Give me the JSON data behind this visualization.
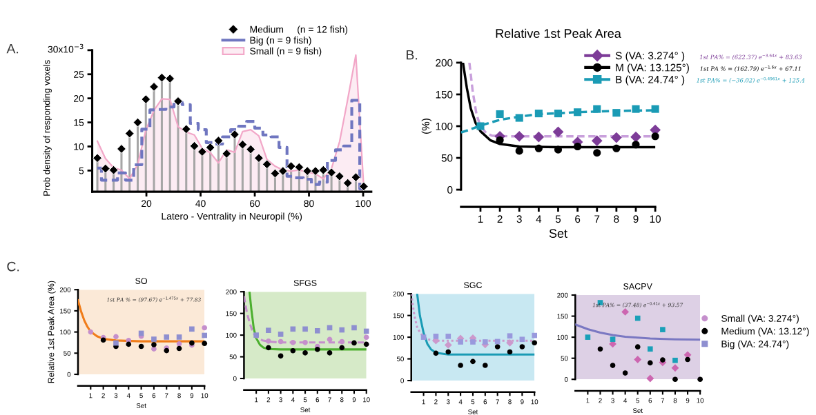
{
  "chart_data": [
    {
      "type": "lollipop",
      "xlabel": "Latero - Ventrality in Neuropil (%)",
      "ylabel": "Prob density of responding voxels",
      "annotations": [
        "A.",
        "30x10$^{−3}$"
      ],
      "xlim": [
        0,
        103
      ],
      "ylim": [
        0.6,
        30
      ],
      "xticks": [
        20,
        40,
        60,
        80,
        100
      ],
      "yticks": [
        5,
        10,
        15,
        20,
        25,
        {
          "value": 30,
          "label": null
        }
      ],
      "legend": "top right",
      "x": [
        1.9,
        4.9,
        7.9,
        10.8,
        13.8,
        16.8,
        19.8,
        22.8,
        25.7,
        28.7,
        31.7,
        34.7,
        37.7,
        40.6,
        43.6,
        46.6,
        49.6,
        52.6,
        55.5,
        58.5,
        61.5,
        64.5,
        67.5,
        70.4,
        73.4,
        76.4,
        79.4,
        82.4,
        85.3,
        88.3,
        91.3,
        94.3,
        97.3,
        100.2
      ],
      "series": [
        {
          "name": "Medium     (n = 12 fish)",
          "type": "lollipop",
          "marker": "diamond",
          "color": "#000000",
          "values": [
            7.6,
            5.4,
            5.1,
            9.5,
            12.7,
            15.0,
            19.8,
            22.4,
            24.3,
            24.1,
            19.4,
            13.6,
            10.1,
            8.9,
            9.8,
            11.2,
            8.5,
            12.5,
            10.4,
            9.4,
            7.6,
            6.3,
            4.4,
            4.9,
            5.9,
            5.7,
            4.9,
            4.9,
            5.1,
            4.6,
            3.8,
            2.4,
            3.6,
            1.7
          ]
        },
        {
          "name": "Big (n = 9 fish)",
          "type": "step",
          "line_style": "dashed",
          "color": "#6f76c0",
          "values": [
            5.5,
            3.0,
            3.0,
            4.5,
            3.0,
            6.2,
            13.6,
            17.6,
            17.7,
            18.2,
            19.2,
            18.7,
            14.8,
            13.5,
            10.8,
            10.5,
            12.0,
            13.5,
            14.2,
            15.2,
            13.8,
            12.4,
            12.0,
            9.8,
            3.8,
            3.5,
            3.2,
            2.1,
            2.6,
            7.1,
            9.3,
            10.1,
            19.6,
            1.2
          ]
        },
        {
          "name": "Small (n = 9 fish)",
          "type": "area",
          "color": "#f2a7c8",
          "values": [
            11.1,
            7.5,
            5.6,
            5.1,
            3.3,
            6.3,
            13.4,
            17.5,
            19.9,
            19.8,
            14.1,
            13.0,
            12.4,
            9.6,
            8.7,
            6.6,
            9.3,
            8.8,
            13.1,
            13.5,
            12.2,
            7.3,
            5.9,
            5.1,
            4.9,
            5.1,
            4.7,
            4.3,
            3.3,
            5.4,
            11.0,
            19.8,
            29.0,
            1.7
          ]
        }
      ]
    },
    {
      "type": "scatter",
      "title": "Relative 1st Peak Area",
      "xlabel": "Set",
      "ylabel": "(%)",
      "xlim": [
        0,
        10
      ],
      "ylim": [
        0,
        200
      ],
      "xticks": [
        1,
        2,
        3,
        4,
        5,
        6,
        7,
        8,
        9,
        10
      ],
      "yticks": [
        0,
        50,
        100,
        150,
        200
      ],
      "legend": "top right",
      "annotations": [
        "B.",
        "1st PA% = (622.37) e$^{−3.64x}$ + 83.63",
        "1st PA % = (162.79) e$^{−1.6x}$ + 67.11",
        "1st PA% = (−36.02) e$^{−0.4961x}$ + 125.4"
      ],
      "x": [
        1,
        2,
        3,
        4,
        5,
        6,
        7,
        8,
        9,
        10
      ],
      "series": [
        {
          "name": "S (VA: 3.274° )",
          "type": "scatter",
          "marker": "diamond",
          "color": "#7d3c98",
          "values": [
            null,
            84,
            84,
            83,
            91,
            75,
            77,
            82,
            83,
            94
          ]
        },
        {
          "name": "M (VA: 13.125°)",
          "type": "scatter",
          "marker": "circle",
          "color": "#000000",
          "values": [
            null,
            78,
            61,
            65,
            63,
            68,
            58,
            65,
            71,
            84
          ]
        },
        {
          "name": "B (VA: 24.74° )",
          "type": "scatter",
          "marker": "square",
          "color": "#1a9bb5",
          "values": [
            100,
            119,
            113,
            120,
            120,
            122,
            127,
            121,
            127,
            127
          ]
        },
        {
          "type": "line",
          "line_style": "dashed",
          "color": "#c9a0dc",
          "x": [
            0.43,
            0.6,
            0.8,
            1.0,
            1.3,
            1.6,
            2.5,
            10
          ],
          "values": [
            200,
            155,
            118,
            100,
            89,
            85,
            84,
            84
          ]
        },
        {
          "type": "line",
          "line_style": "solid",
          "color": "#000000",
          "x": [
            0.1,
            0.3,
            0.5,
            0.75,
            1,
            1.5,
            2,
            3,
            5,
            10
          ],
          "values": [
            200,
            160,
            128,
            105,
            92,
            78,
            72,
            68,
            67,
            67
          ]
        },
        {
          "type": "line",
          "line_style": "dashed",
          "color": "#1a9bb5",
          "x": [
            0,
            0.5,
            1,
            2,
            3,
            4,
            6,
            8,
            10
          ],
          "values": [
            90,
            95,
            101,
            110,
            115,
            119,
            122,
            124,
            125
          ]
        }
      ]
    },
    {
      "type": "scatter",
      "title": "SO",
      "xlabel": "Set",
      "ylabel": "Relative 1st Peak Area (%)",
      "xlim": [
        0,
        10
      ],
      "ylim": [
        0,
        200
      ],
      "xticks": [
        1,
        2,
        3,
        4,
        5,
        6,
        7,
        8,
        9,
        10
      ],
      "yticks": [
        0,
        50,
        100,
        150,
        200
      ],
      "legend": "right",
      "bands": [
        {
          "axis": "y",
          "from": 0,
          "to": 200,
          "color": "#fbe9d7"
        }
      ],
      "annotations": [
        "C.",
        "1st PA % = (97.67) e$^{−1.475x}$ + 77.83"
      ],
      "x": [
        1,
        2,
        3,
        4,
        5,
        6,
        7,
        8,
        9,
        10
      ],
      "series": [
        {
          "name": "Small (VA: 3.274°)",
          "type": "scatter",
          "marker": "circle",
          "color": "#c58fcc",
          "values": [
            100,
            87,
            89,
            80,
            90,
            60,
            62,
            72,
            69,
            110
          ]
        },
        {
          "name": "Medium (VA: 13.12°)",
          "type": "scatter",
          "marker": "circle",
          "color": "#000000",
          "values": [
            null,
            81,
            66,
            71,
            66,
            70,
            56,
            61,
            74,
            73
          ]
        },
        {
          "name": "Big (VA: 24.74°)",
          "type": "scatter",
          "marker": "square",
          "color": "#8e8fd0",
          "values": [
            null,
            null,
            74,
            null,
            97,
            83,
            88,
            88,
            107,
            92
          ]
        },
        {
          "type": "line",
          "line_style": "solid",
          "color": "#f07d1a",
          "x": [
            0,
            0.25,
            0.5,
            0.75,
            1,
            1.5,
            2,
            3,
            5,
            10
          ],
          "values": [
            175,
            148,
            127,
            112,
            101,
            90,
            84,
            80,
            78,
            78
          ]
        }
      ]
    },
    {
      "type": "scatter",
      "title": "SFGS",
      "xlabel": "Set",
      "xlim": [
        0,
        10
      ],
      "ylim": [
        0,
        200
      ],
      "xticks": [
        1,
        2,
        3,
        4,
        5,
        6,
        7,
        8,
        9,
        10
      ],
      "yticks": [
        0,
        50,
        100,
        150,
        200
      ],
      "bands": [
        {
          "axis": "y",
          "from": 0,
          "to": 200,
          "color": "#d6eac8"
        }
      ],
      "x": [
        1,
        2,
        3,
        4,
        5,
        6,
        7,
        8,
        9,
        10
      ],
      "series": [
        {
          "type": "scatter",
          "marker": "circle",
          "color": "#c58fcc",
          "values": [
            null,
            86,
            85,
            83,
            83,
            74,
            90,
            85,
            null,
            95
          ]
        },
        {
          "type": "scatter",
          "marker": "circle",
          "color": "#000000",
          "values": [
            null,
            71,
            52,
            64,
            59,
            67,
            59,
            71,
            82,
            79
          ]
        },
        {
          "type": "scatter",
          "marker": "square",
          "color": "#8e8fd0",
          "values": [
            100,
            111,
            102,
            114,
            114,
            110,
            117,
            112,
            117,
            109
          ]
        },
        {
          "type": "line",
          "line_style": "solid",
          "color": "#4caf2f",
          "x": [
            0.45,
            0.6,
            0.8,
            1,
            1.3,
            1.6,
            2,
            3,
            10
          ],
          "values": [
            200,
            160,
            115,
            93,
            78,
            71,
            68,
            67,
            67
          ]
        },
        {
          "type": "line",
          "line_style": "dashed",
          "color": "#c58fcc",
          "x": [
            0,
            0.25,
            0.5,
            0.75,
            1,
            1.5,
            2,
            3,
            10
          ],
          "values": [
            190,
            150,
            125,
            105,
            96,
            88,
            85,
            83,
            83
          ]
        }
      ]
    },
    {
      "type": "scatter",
      "title": "SGC",
      "xlabel": "Set",
      "xlim": [
        0,
        10
      ],
      "ylim": [
        0,
        200
      ],
      "xticks": [
        1,
        2,
        3,
        4,
        5,
        6,
        7,
        8,
        9,
        10
      ],
      "yticks": [
        0,
        50,
        100,
        150,
        200
      ],
      "bands": [
        {
          "axis": "y",
          "from": 0,
          "to": 200,
          "color": "#c8e8f2"
        }
      ],
      "x": [
        1,
        2,
        3,
        4,
        5,
        6,
        7,
        8,
        9,
        10
      ],
      "series": [
        {
          "type": "scatter",
          "marker": "diamond",
          "color": "#cc99cc",
          "values": [
            null,
            92,
            82,
            97,
            98,
            83,
            null,
            87,
            null,
            null
          ]
        },
        {
          "type": "scatter",
          "marker": "circle",
          "color": "#000000",
          "values": [
            null,
            63,
            66,
            35,
            44,
            35,
            78,
            66,
            78,
            87
          ]
        },
        {
          "type": "scatter",
          "marker": "square",
          "color": "#9999dd",
          "values": [
            100,
            102,
            102,
            89,
            89,
            89,
            90,
            103,
            95,
            104
          ]
        },
        {
          "type": "line",
          "line_style": "solid",
          "color": "#1a9bb5",
          "x": [
            0.48,
            0.7,
            1,
            1.3,
            1.6,
            2,
            3,
            10
          ],
          "values": [
            200,
            150,
            110,
            85,
            72,
            64,
            60,
            60
          ]
        },
        {
          "type": "line",
          "line_style": "dotted",
          "color": "#cc99cc",
          "x": [
            0,
            0.25,
            0.5,
            1,
            1.5,
            2,
            10
          ],
          "values": [
            200,
            150,
            120,
            100,
            94,
            92,
            92
          ]
        }
      ]
    },
    {
      "type": "scatter",
      "title": "SACPV",
      "xlabel": "Set",
      "xlim": [
        0,
        10
      ],
      "ylim": [
        0,
        200
      ],
      "xticks": [
        1,
        2,
        3,
        4,
        5,
        6,
        7,
        8,
        9,
        10
      ],
      "yticks": [
        0,
        50,
        100,
        150,
        200
      ],
      "bands": [
        {
          "axis": "y",
          "from": 0,
          "to": 200,
          "color": "#ddd0e5"
        }
      ],
      "annotations": [
        "1st PA% = (37.48) e$^{−0.41x}$ + 93.57"
      ],
      "x": [
        1,
        2,
        3,
        4,
        5,
        6,
        7,
        8,
        9,
        10
      ],
      "series": [
        {
          "type": "line",
          "line_style": "solid",
          "color": "#7a78c2",
          "x": [
            0,
            1,
            2,
            3,
            4,
            5,
            6,
            8,
            10
          ],
          "values": [
            130,
            119,
            111,
            105,
            101,
            99,
            97,
            95,
            94
          ]
        },
        {
          "type": "scatter",
          "marker": "diamond",
          "color": "#cc66b0",
          "values": [
            null,
            null,
            84,
            160,
            47,
            2,
            40,
            27,
            58,
            null
          ]
        },
        {
          "type": "scatter",
          "marker": "square",
          "color": "#1aa0b8",
          "values": [
            100,
            182,
            95,
            null,
            145,
            72,
            118,
            45,
            null,
            null
          ]
        },
        {
          "type": "scatter",
          "marker": "circle",
          "color": "#000000",
          "values": [
            null,
            72,
            33,
            15,
            77,
            39,
            46,
            0,
            47,
            0
          ]
        }
      ]
    }
  ]
}
